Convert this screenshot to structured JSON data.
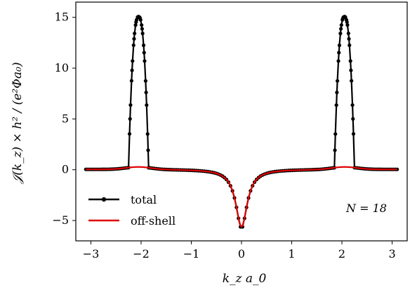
{
  "chart_data": {
    "type": "line",
    "title": "",
    "xlabel": "k_z a_0",
    "ylabel": "𝒥(k_z) × h² / (e²Φa₀)",
    "xlim": [
      -3.3,
      3.3
    ],
    "ylim": [
      -7,
      16.5
    ],
    "x_ticks": [
      -3,
      -2,
      -1,
      0,
      1,
      2,
      3
    ],
    "y_ticks": [
      -5,
      0,
      5,
      10,
      15
    ],
    "x_tick_labels": [
      "−3",
      "−2",
      "−1",
      "0",
      "1",
      "2",
      "3"
    ],
    "y_tick_labels": [
      "−5",
      "0",
      "5",
      "10",
      "15"
    ],
    "grid": false,
    "legend_position": "lower-left",
    "annotation": "N = 18",
    "series": [
      {
        "name": "total",
        "color": "#000000",
        "marker": "dot",
        "peak_x": [
          -2.05,
          2.05
        ],
        "peak_y": 14.8,
        "min_y": -5.8,
        "baseline_far": 0.1
      },
      {
        "name": "off-shell",
        "color": "#e00000",
        "marker": "none",
        "min_y": -5.6,
        "bump_y": 0.25
      }
    ]
  }
}
